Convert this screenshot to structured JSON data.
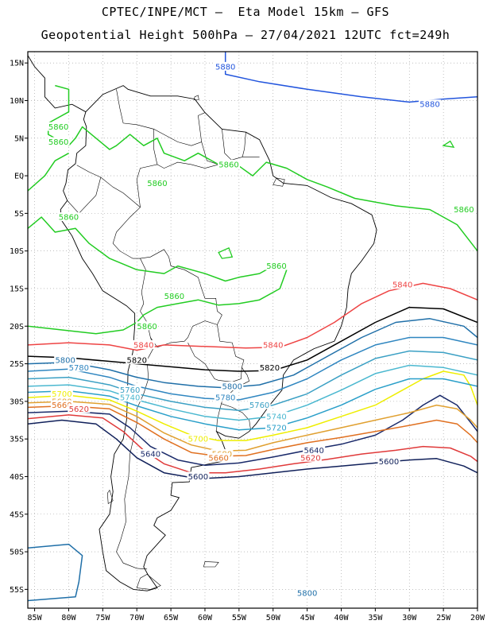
{
  "header": {
    "line1": "CPTEC/INPE/MCT –  Eta Model 15km – GFS",
    "line2": "Geopotential Height 500hPa – 27/04/2021 12UTC fct=249h"
  },
  "axes": {
    "lon_ticks": [
      "85W",
      "80W",
      "75W",
      "70W",
      "65W",
      "60W",
      "55W",
      "50W",
      "45W",
      "40W",
      "35W",
      "30W",
      "25W",
      "20W"
    ],
    "lat_ticks": [
      "15N",
      "10N",
      "5N",
      "EQ",
      "5S",
      "10S",
      "15S",
      "20S",
      "25S",
      "30S",
      "35S",
      "40S",
      "45S",
      "50S",
      "55S"
    ],
    "lon_range": [
      -86,
      -20
    ],
    "lat_range": [
      16.5,
      -57.5
    ]
  },
  "colors": {
    "5880": "#2255dd",
    "5860": "#22cc22",
    "5840": "#ee4444",
    "5820": "#000000",
    "5800": "#1f6fa8",
    "5780": "#2f86c0",
    "5760": "#3ba0c4",
    "5740": "#4bb8d0",
    "5720": "#2a9fc9",
    "5700": "#eeee00",
    "5680": "#e0a030",
    "5660": "#e07020",
    "5640": "#1a2a6a",
    "5620": "#e03a3a",
    "5600": "#10205a",
    "map": "#000000",
    "grid": "#999999"
  },
  "contours": [
    {
      "level": "5880",
      "label_pos": [
        [
          -57,
          14.5
        ],
        [
          -27,
          9.5
        ]
      ]
    },
    {
      "level": "5860",
      "label_pos": [
        [
          -81.5,
          6.5
        ],
        [
          -81.5,
          4.5
        ],
        [
          -56.5,
          1.5
        ],
        [
          -67,
          -1
        ],
        [
          -80,
          -5.5
        ],
        [
          -22,
          -4.5
        ],
        [
          -49.5,
          -12
        ],
        [
          -64.5,
          -16
        ],
        [
          -68.5,
          -20
        ]
      ]
    },
    {
      "level": "5840",
      "label_pos": [
        [
          -31,
          -14.5
        ],
        [
          -69,
          -22.5
        ],
        [
          -50,
          -22.5
        ]
      ]
    },
    {
      "level": "5820",
      "label_pos": [
        [
          -70,
          -24.5
        ],
        [
          -50.5,
          -25.5
        ]
      ]
    },
    {
      "level": "5800",
      "label_pos": [
        [
          -80.5,
          -24.5
        ],
        [
          -56,
          -28
        ],
        [
          -45,
          -55.5
        ]
      ]
    },
    {
      "level": "5780",
      "label_pos": [
        [
          -78.5,
          -25.5
        ],
        [
          -57,
          -29.5
        ]
      ]
    },
    {
      "level": "5760",
      "label_pos": [
        [
          -71,
          -28.5
        ],
        [
          -52,
          -30.5
        ]
      ]
    },
    {
      "level": "5740",
      "label_pos": [
        [
          -71,
          -29.5
        ],
        [
          -49.5,
          -32
        ]
      ]
    },
    {
      "level": "5720",
      "label_pos": [
        [
          -49.5,
          -33.5
        ]
      ]
    },
    {
      "level": "5700",
      "label_pos": [
        [
          -81,
          -29
        ],
        [
          -61,
          -35
        ]
      ]
    },
    {
      "level": "5680",
      "label_pos": [
        [
          -81,
          -30
        ],
        [
          -57.5,
          -37
        ]
      ]
    },
    {
      "level": "5660",
      "label_pos": [
        [
          -81,
          -30.5
        ],
        [
          -58,
          -37.5
        ]
      ]
    },
    {
      "level": "5640",
      "label_pos": [
        [
          -68,
          -37
        ],
        [
          -44,
          -36.5
        ]
      ]
    },
    {
      "level": "5620",
      "label_pos": [
        [
          -78.5,
          -31
        ],
        [
          -44.5,
          -37.5
        ]
      ]
    },
    {
      "level": "5600",
      "label_pos": [
        [
          -61,
          -40
        ],
        [
          -33,
          -38
        ]
      ]
    }
  ]
}
